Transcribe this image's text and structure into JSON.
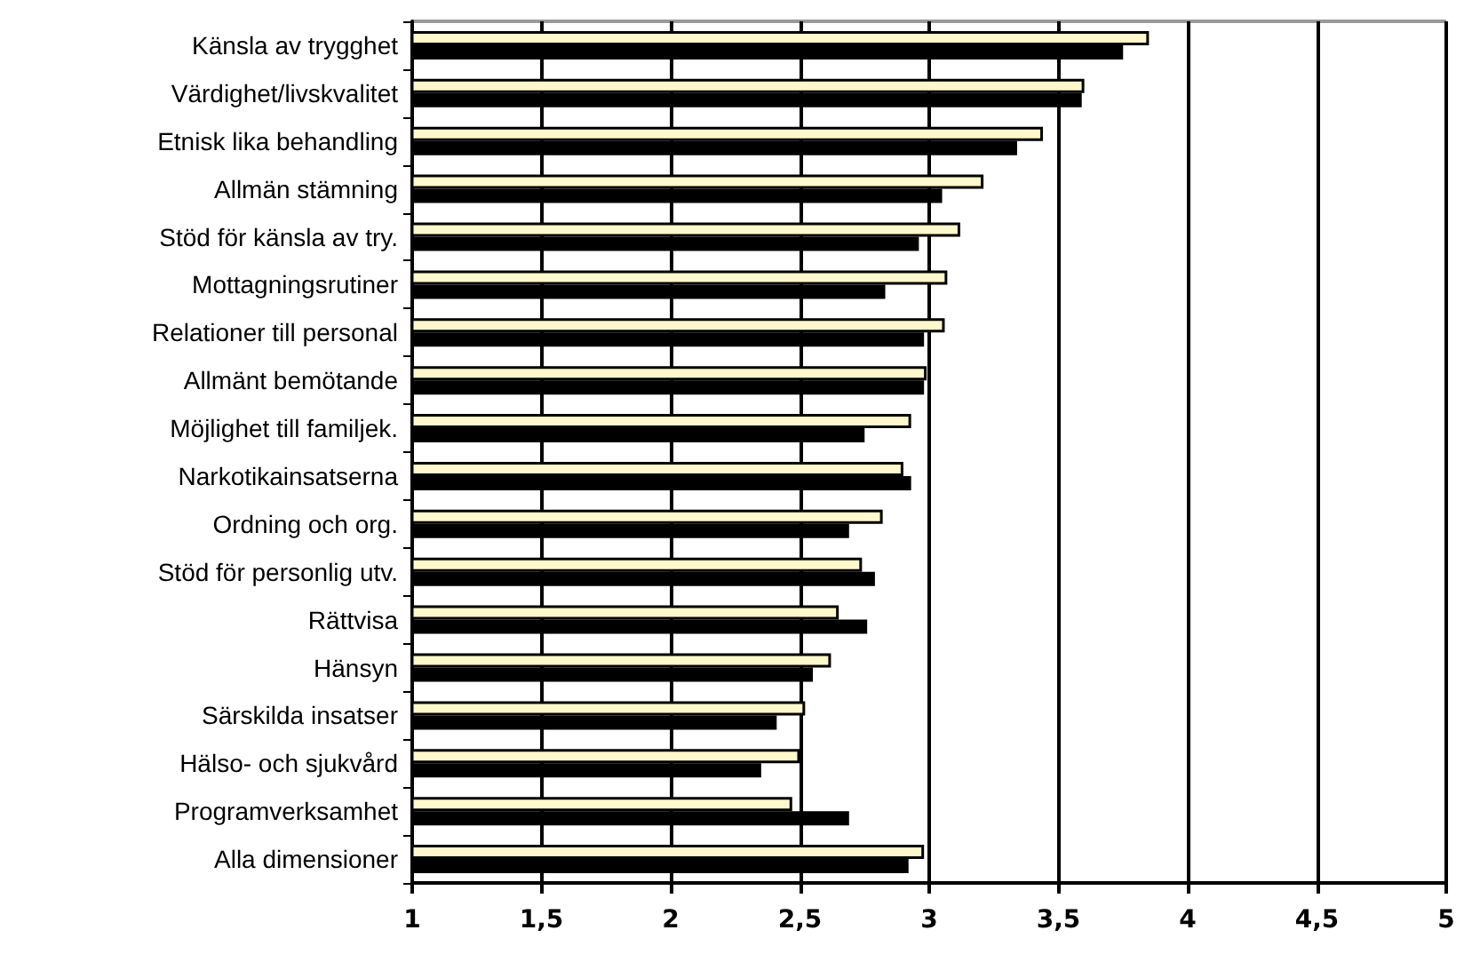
{
  "chart_data": {
    "type": "bar",
    "orientation": "horizontal",
    "categories": [
      "Känsla av trygghet",
      "Värdighet/livskvalitet",
      "Etnisk lika behandling",
      "Allmän stämning",
      "Stöd för känsla av try.",
      "Mottagningsrutiner",
      "Relationer till personal",
      "Allmänt bemötande",
      "Möjlighet till familjek.",
      "Narkotikainsatserna",
      "Ordning och org.",
      "Stöd för personlig utv.",
      "Rättvisa",
      "Hänsyn",
      "Särskilda insatser",
      "Hälso- och sjukvård",
      "Programverksamhet",
      "Alla dimensioner"
    ],
    "series": [
      {
        "color": "#fff8cc",
        "values": [
          3.85,
          3.6,
          3.44,
          3.21,
          3.12,
          3.07,
          3.06,
          2.99,
          2.93,
          2.9,
          2.82,
          2.74,
          2.65,
          2.62,
          2.52,
          2.5,
          2.47,
          2.98
        ]
      },
      {
        "color": "#000000",
        "values": [
          3.75,
          3.59,
          3.34,
          3.05,
          2.96,
          2.83,
          2.98,
          2.98,
          2.75,
          2.93,
          2.69,
          2.79,
          2.76,
          2.55,
          2.41,
          2.35,
          2.69,
          2.92
        ]
      }
    ],
    "xlim": [
      1,
      5
    ],
    "xticks": [
      1,
      {
        "value": 1.5,
        "label": "1,5"
      },
      2,
      {
        "value": 2.5,
        "label": "2,5"
      },
      3,
      {
        "value": 3.5,
        "label": "3,5"
      },
      4,
      {
        "value": 4.5,
        "label": "4,5"
      },
      5
    ],
    "grid": "x"
  }
}
